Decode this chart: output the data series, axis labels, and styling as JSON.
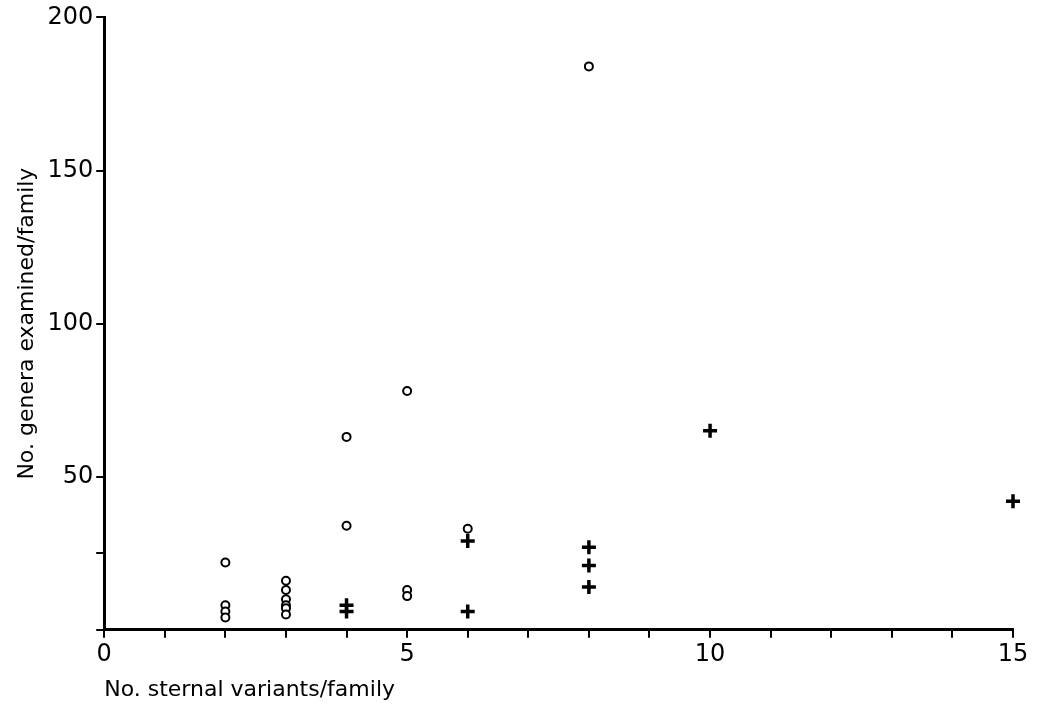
{
  "chart_data": {
    "type": "scatter",
    "xlabel": "No. sternal variants/family",
    "ylabel": "No. genera examined/family",
    "series": [
      {
        "color": "#000000",
        "marker": "circle",
        "x": [
          2,
          2,
          2,
          2,
          3,
          3,
          3,
          3,
          3,
          3,
          4,
          4,
          5,
          5,
          5,
          6,
          8
        ],
        "values": [
          22,
          8,
          6,
          4,
          16,
          13,
          10,
          8,
          7,
          5,
          63,
          34,
          78,
          13,
          11,
          33,
          184
        ]
      },
      {
        "color": "#000000",
        "marker": "cross",
        "x": [
          4,
          4,
          6,
          6,
          8,
          8,
          8,
          10,
          15
        ],
        "values": [
          8,
          6,
          29,
          6,
          27,
          21,
          14,
          65,
          42
        ]
      }
    ],
    "xlim": [
      0,
      15
    ],
    "ylim": [
      0,
      200
    ],
    "xticks": [
      0,
      {
        "value": 1,
        "label": null
      },
      {
        "value": 2,
        "label": null
      },
      {
        "value": 3,
        "label": null
      },
      {
        "value": 4,
        "label": null
      },
      5,
      {
        "value": 6,
        "label": null
      },
      {
        "value": 7,
        "label": null
      },
      {
        "value": 8,
        "label": null
      },
      {
        "value": 9,
        "label": null
      },
      10,
      {
        "value": 11,
        "label": null
      },
      {
        "value": 12,
        "label": null
      },
      {
        "value": 13,
        "label": null
      },
      {
        "value": 14,
        "label": null
      },
      15
    ],
    "yticks": [
      {
        "value": 0,
        "label": null
      },
      {
        "value": 25,
        "label": null
      },
      50,
      100,
      150,
      200
    ],
    "grid": false,
    "legend": false
  }
}
